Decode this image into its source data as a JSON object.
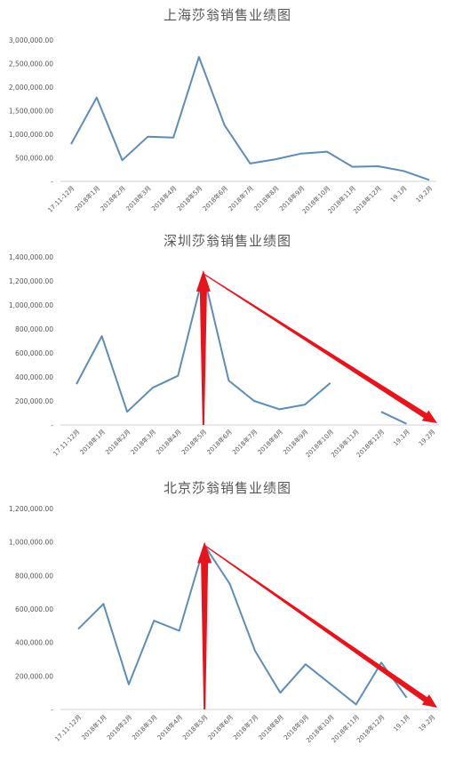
{
  "chart_data": [
    {
      "type": "line",
      "title": "上海莎翁销售业绩图",
      "categories": [
        "17.11-12月",
        "2018年1月",
        "2018年2月",
        "2018年3月",
        "2018年4月",
        "2018年5月",
        "2018年6月",
        "2018年7月",
        "2018年8月",
        "2018年9月",
        "2018年10月",
        "2018年11月",
        "2018年12月",
        "19.1月",
        "19.2月"
      ],
      "yticks": [
        "-",
        "500,000.00",
        "1,000,000.00",
        "1,500,000.00",
        "2,000,000.00",
        "2,500,000.00",
        "3,000,000.00"
      ],
      "ylim": [
        0,
        3000000
      ],
      "series": [
        {
          "values": [
            790000,
            1780000,
            450000,
            950000,
            930000,
            2640000,
            1190000,
            380000,
            470000,
            590000,
            630000,
            310000,
            320000,
            220000,
            30000
          ]
        }
      ],
      "line_color": "#5b8db8"
    },
    {
      "type": "line",
      "title": "深圳莎翁销售业绩图",
      "categories": [
        "17.11-12月",
        "2018年1月",
        "2018年2月",
        "2018年3月",
        "2018年4月",
        "2018年5月",
        "2018年6月",
        "2018年7月",
        "2018年8月",
        "2018年9月",
        "2018年10月",
        "2018年11月",
        "2018年12月",
        "19.1月",
        "19.2月"
      ],
      "yticks": [
        "-",
        "200,000.00",
        "400,000.00",
        "600,000.00",
        "800,000.00",
        "1,000,000.00",
        "1,200,000.00",
        "1,400,000.00"
      ],
      "ylim": [
        0,
        1400000
      ],
      "series": [
        {
          "values": [
            340000,
            740000,
            110000,
            310000,
            410000,
            1260000,
            370000,
            200000,
            130000,
            170000,
            350000,
            null,
            110000,
            10000,
            null
          ]
        }
      ],
      "line_color": "#5b8db8",
      "arrow_color": "#e8141c"
    },
    {
      "type": "line",
      "title": "北京莎翁销售业绩图",
      "categories": [
        "17.11-12月",
        "2018年1月",
        "2018年2月",
        "2018年3月",
        "2018年4月",
        "2018年5月",
        "2018年6月",
        "2018年7月",
        "2018年8月",
        "2018年9月",
        "2018年10月",
        "2018年11月",
        "2018年12月",
        "19.1月",
        "19.2月"
      ],
      "yticks": [
        "-",
        "200,000.00",
        "400,000.00",
        "600,000.00",
        "800,000.00",
        "1,000,000.00",
        "1,200,000.00"
      ],
      "ylim": [
        0,
        1200000
      ],
      "series": [
        {
          "values": [
            480000,
            630000,
            150000,
            530000,
            470000,
            980000,
            750000,
            350000,
            100000,
            270000,
            150000,
            30000,
            280000,
            70000,
            null
          ]
        }
      ],
      "line_color": "#5b8db8",
      "arrow_color": "#e8141c"
    }
  ]
}
